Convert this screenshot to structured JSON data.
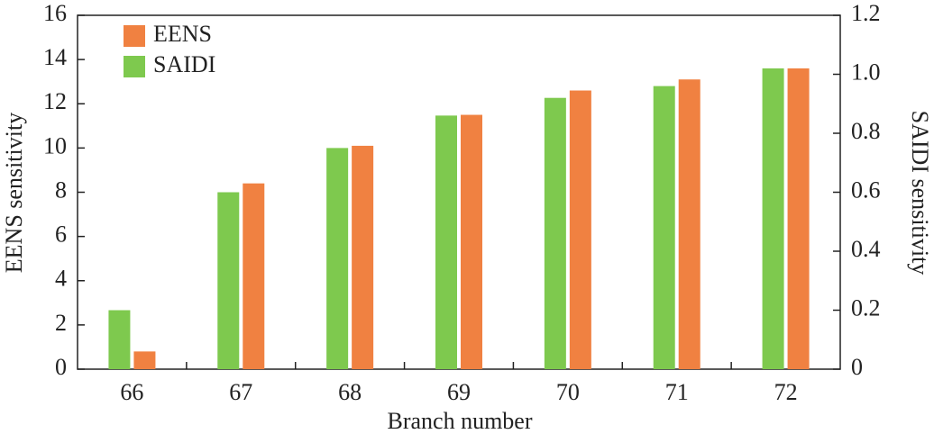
{
  "chart_data": {
    "type": "bar",
    "xlabel": "Branch number",
    "ylabel": "EENS sensitivity",
    "y2label": "SAIDI sensitivity",
    "categories": [
      "66",
      "67",
      "68",
      "69",
      "70",
      "71",
      "72"
    ],
    "series": [
      {
        "name": "EENS",
        "color": "#f08141",
        "values": [
          0.8,
          8.4,
          10.1,
          11.5,
          12.6,
          13.1,
          13.6
        ]
      },
      {
        "name": "SAIDI",
        "color": "#7ec94e",
        "axis": "y2",
        "values": [
          0.2,
          0.6,
          0.75,
          0.86,
          0.92,
          0.96,
          1.02
        ]
      }
    ],
    "ylim": [
      0,
      16
    ],
    "yticks": [
      0,
      2,
      4,
      6,
      8,
      10,
      12,
      14,
      16
    ],
    "y2lim": [
      0,
      1.2
    ],
    "y2ticks": [
      0,
      0.2,
      0.4,
      0.6,
      0.8,
      {
        "value": 1,
        "label": "1.0"
      },
      1.2
    ],
    "grid": false,
    "legend": "upper left"
  }
}
